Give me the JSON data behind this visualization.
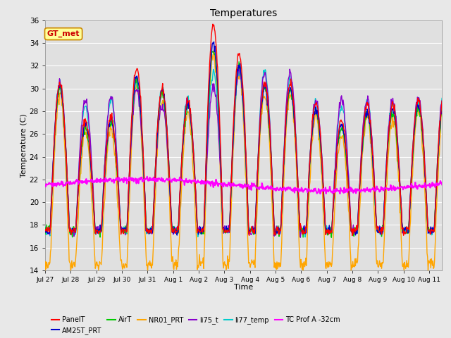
{
  "title": "Temperatures",
  "xlabel": "Time",
  "ylabel": "Temperature (C)",
  "ylim": [
    14,
    36
  ],
  "background_color": "#e8e8e8",
  "plot_bg_color": "#e0e0e0",
  "grid_color": "#ffffff",
  "series": {
    "PanelT": {
      "color": "#ff0000",
      "lw": 1.0,
      "zorder": 5
    },
    "AM25T_PRT": {
      "color": "#0000cc",
      "lw": 1.0,
      "zorder": 4
    },
    "AirT": {
      "color": "#00cc00",
      "lw": 1.0,
      "zorder": 4
    },
    "NR01_PRT": {
      "color": "#ffa500",
      "lw": 1.0,
      "zorder": 4
    },
    "li75_t": {
      "color": "#8800cc",
      "lw": 1.0,
      "zorder": 4
    },
    "li77_temp": {
      "color": "#00cccc",
      "lw": 1.0,
      "zorder": 4
    },
    "TC Prof A -32cm": {
      "color": "#ff00ff",
      "lw": 1.5,
      "zorder": 6
    }
  },
  "annotation": {
    "text": "GT_met",
    "facecolor": "#ffff99",
    "edgecolor": "#cc8800",
    "textcolor": "#cc0000",
    "fontsize": 8,
    "fontweight": "bold"
  },
  "xtick_labels": [
    "Jul 27",
    "Jul 28",
    "Jul 29",
    "Jul 30",
    "Jul 31",
    "Aug 1",
    "Aug 2",
    "Aug 3",
    "Aug 4",
    "Aug 5",
    "Aug 6",
    "Aug 7",
    "Aug 8",
    "Aug 9",
    "Aug 10",
    "Aug 11"
  ],
  "yticks": [
    14,
    16,
    18,
    20,
    22,
    24,
    26,
    28,
    30,
    32,
    34,
    36
  ],
  "panel_peaks": [
    30.5,
    27.2,
    27.5,
    31.8,
    30.0,
    29.0,
    35.5,
    33.0,
    30.5,
    30.5,
    28.8,
    27.2,
    28.5,
    28.5,
    29.0,
    29.5
  ],
  "am25_peaks": [
    30.2,
    26.8,
    27.2,
    31.0,
    29.8,
    28.5,
    34.0,
    32.0,
    30.2,
    30.0,
    28.2,
    26.8,
    28.0,
    28.2,
    28.5,
    29.0
  ],
  "air_peaks": [
    30.0,
    26.5,
    27.0,
    30.8,
    29.5,
    28.3,
    33.5,
    32.0,
    30.0,
    29.8,
    28.0,
    26.5,
    27.8,
    27.8,
    28.3,
    28.8
  ],
  "nr01_peaks": [
    29.5,
    26.0,
    26.5,
    30.3,
    29.0,
    27.8,
    33.0,
    31.5,
    29.5,
    29.5,
    27.5,
    26.0,
    27.5,
    27.5,
    28.0,
    28.5
  ],
  "li75_peaks": [
    30.5,
    29.0,
    29.2,
    30.0,
    28.5,
    28.8,
    30.2,
    31.5,
    31.3,
    31.3,
    29.0,
    29.0,
    29.0,
    29.0,
    29.2,
    29.5
  ],
  "li77_peaks": [
    30.5,
    28.5,
    29.0,
    30.5,
    30.0,
    29.0,
    31.5,
    31.5,
    31.5,
    30.8,
    28.8,
    28.5,
    28.8,
    28.8,
    29.0,
    29.5
  ],
  "base_night_main": 17.5,
  "base_night_nr01": 14.5,
  "tc_base": 21.5,
  "tc_amp": 0.5
}
